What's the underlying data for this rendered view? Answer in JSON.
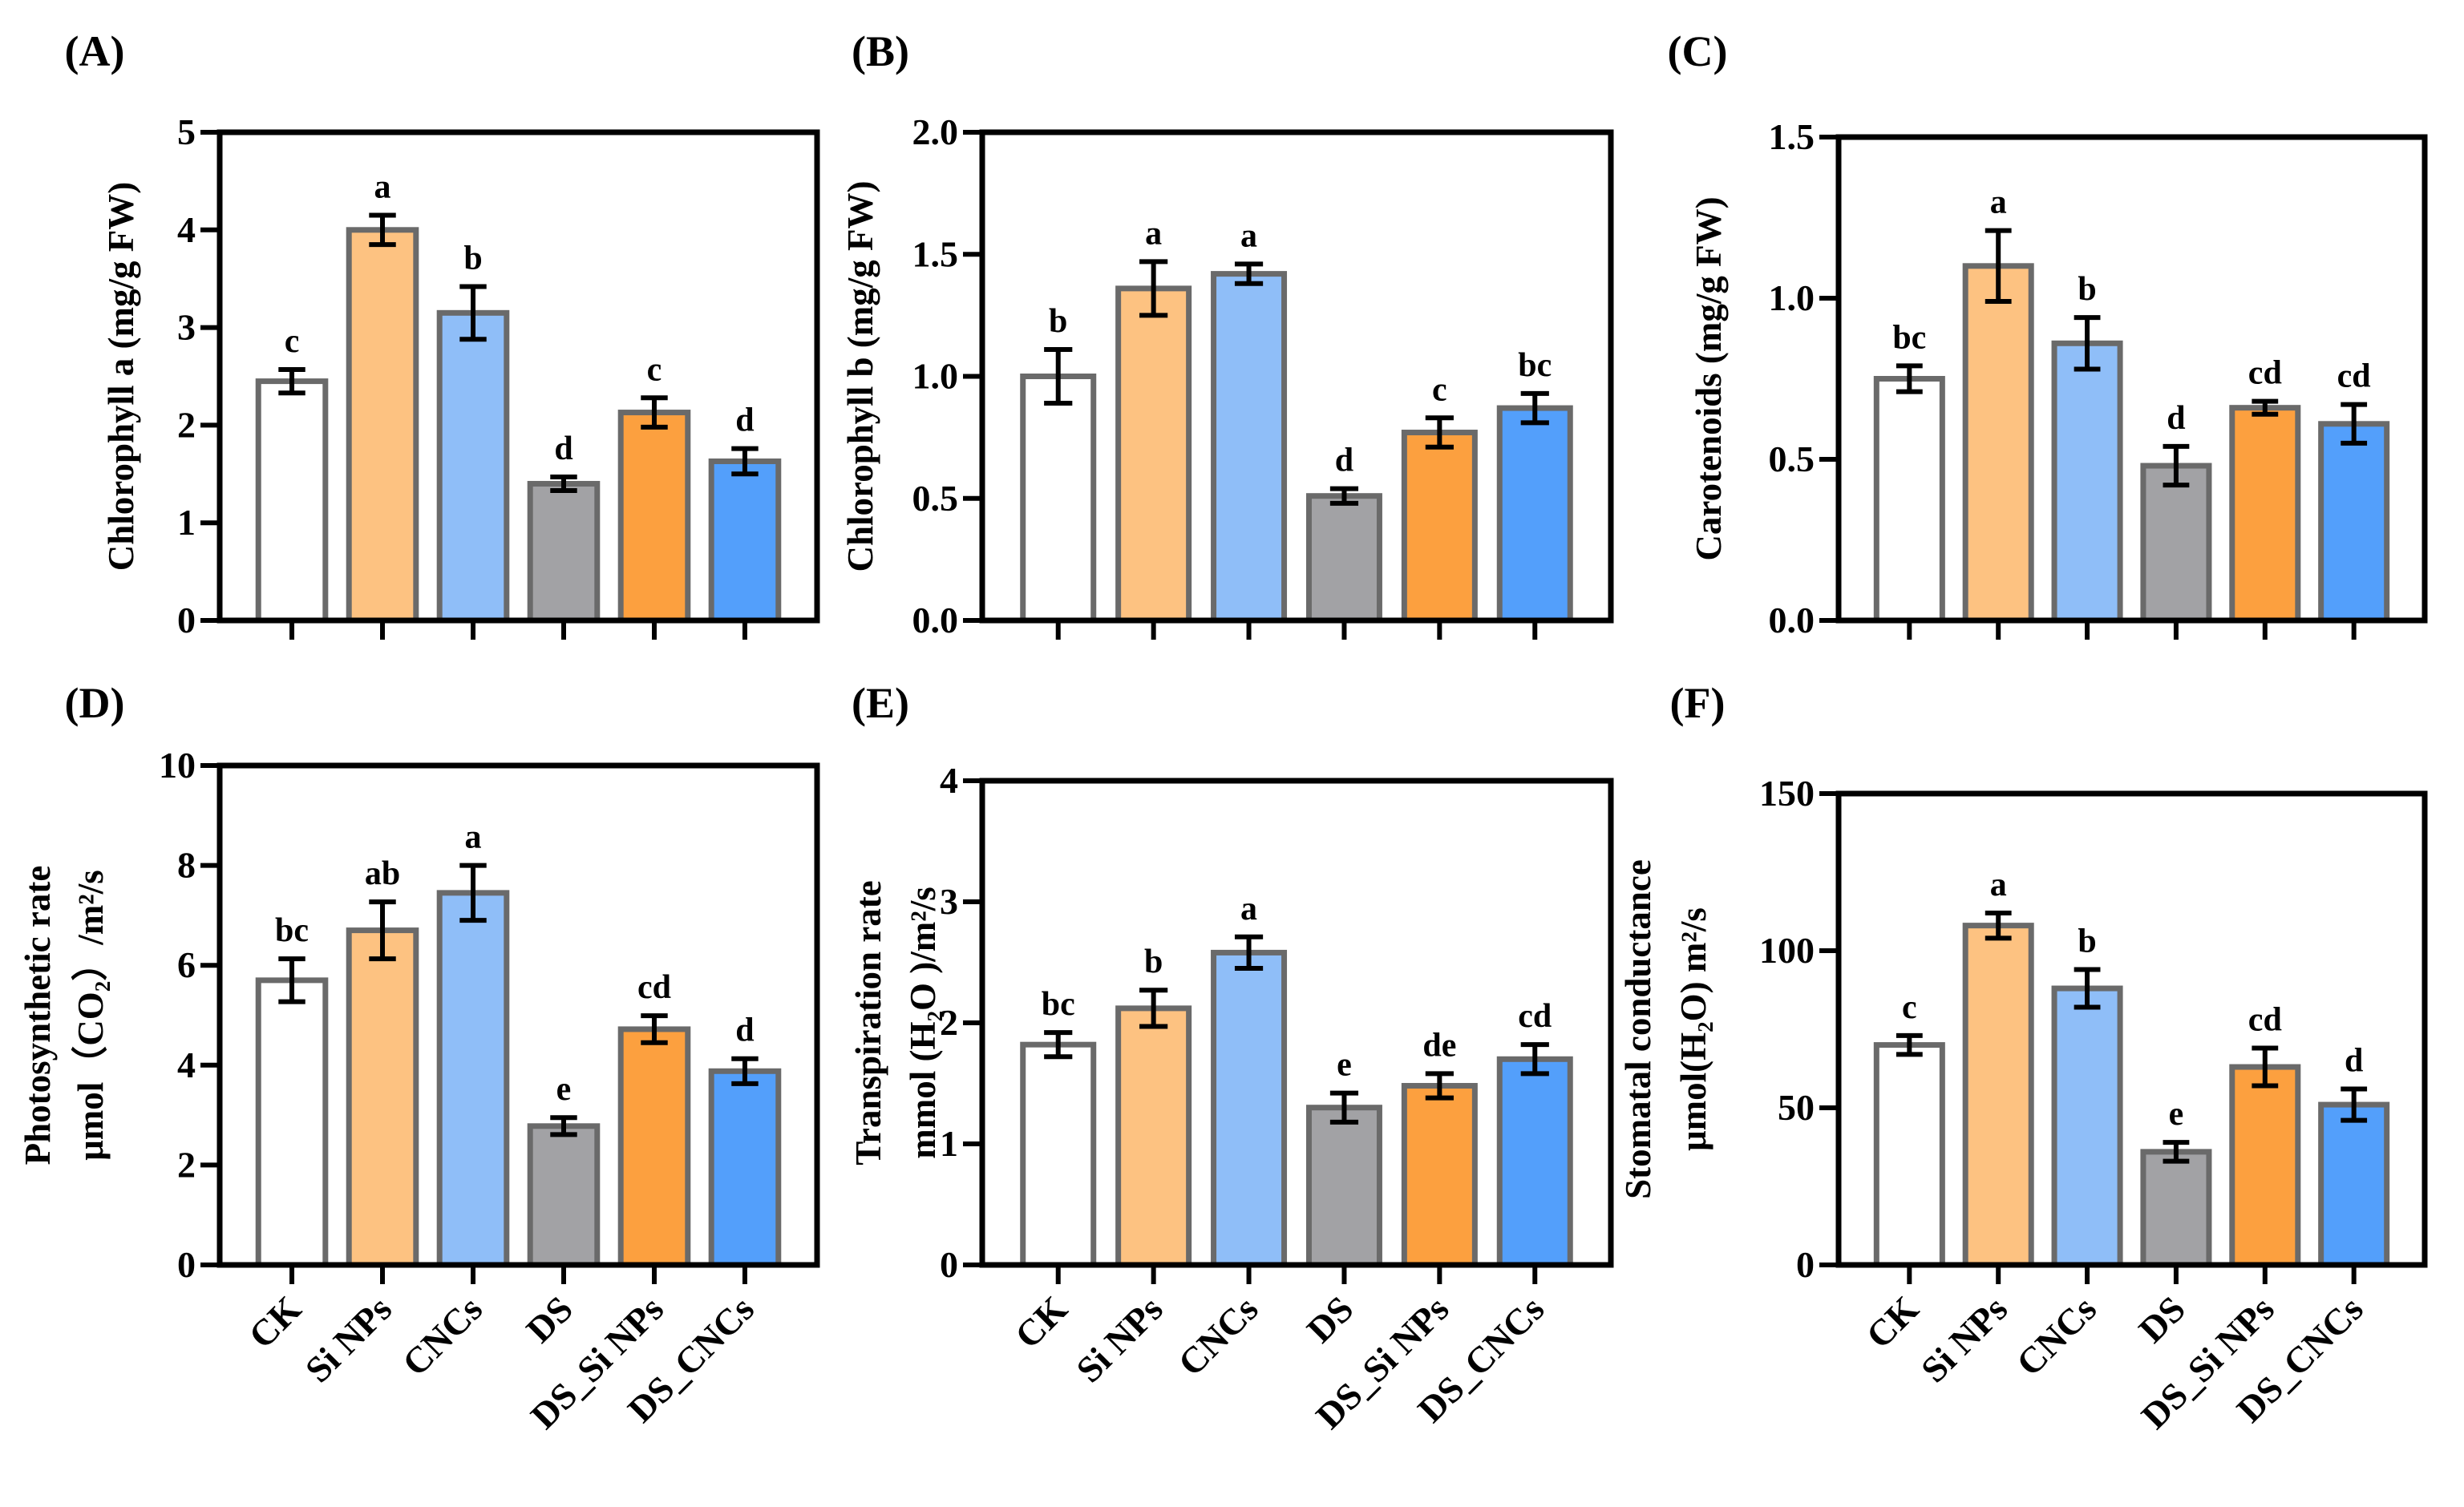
{
  "chart_data": [
    {
      "panel": "(A)",
      "type": "bar",
      "ylabel": [
        "Chlorophyll a (mg/g FW)"
      ],
      "ylim": [
        0,
        5
      ],
      "yticks": [
        "0",
        "1",
        "2",
        "3",
        "4",
        "5"
      ],
      "categories": [
        "CK",
        "Si NPs",
        "CNCs",
        "DS",
        "DS_Si NPs",
        "DS_CNCs"
      ],
      "values": [
        2.45,
        4.0,
        3.15,
        1.4,
        2.13,
        1.63
      ],
      "errors": [
        0.12,
        0.15,
        0.27,
        0.07,
        0.15,
        0.13
      ],
      "letters": [
        "c",
        "a",
        "b",
        "d",
        "c",
        "d"
      ],
      "show_xlabels": false
    },
    {
      "panel": "(B)",
      "type": "bar",
      "ylabel": [
        "Chlorophyll b (mg/g FW)"
      ],
      "ylim": [
        0,
        2
      ],
      "yticks": [
        "0.0",
        "0.5",
        "1.0",
        "1.5",
        "2.0"
      ],
      "categories": [
        "CK",
        "Si NPs",
        "CNCs",
        "DS",
        "DS_Si NPs",
        "DS_CNCs"
      ],
      "values": [
        1.0,
        1.36,
        1.42,
        0.51,
        0.77,
        0.87
      ],
      "errors": [
        0.11,
        0.11,
        0.04,
        0.03,
        0.06,
        0.06
      ],
      "letters": [
        "b",
        "a",
        "a",
        "d",
        "c",
        "bc"
      ],
      "show_xlabels": false
    },
    {
      "panel": "(C)",
      "type": "bar",
      "ylabel": [
        "Carotenoids (mg/g FW)"
      ],
      "ylim": [
        0,
        1.5
      ],
      "yticks": [
        "0.0",
        "0.5",
        "1.0",
        "1.5"
      ],
      "categories": [
        "CK",
        "Si NPs",
        "CNCs",
        "DS",
        "DS_Si NPs",
        "DS_CNCs"
      ],
      "values": [
        0.75,
        1.1,
        0.86,
        0.48,
        0.66,
        0.61
      ],
      "errors": [
        0.04,
        0.11,
        0.08,
        0.06,
        0.02,
        0.06
      ],
      "letters": [
        "bc",
        "a",
        "b",
        "d",
        "cd",
        "cd"
      ],
      "show_xlabels": false
    },
    {
      "panel": "(D)",
      "type": "bar",
      "ylabel": [
        "Photosynthetic rate",
        "μmol（CO₂）/m²/s"
      ],
      "ylim": [
        0,
        10
      ],
      "yticks": [
        "0",
        "2",
        "4",
        "6",
        "8",
        "10"
      ],
      "categories": [
        "CK",
        "Si NPs",
        "CNCs",
        "DS",
        "DS_Si NPs",
        "DS_CNCs"
      ],
      "values": [
        5.7,
        6.7,
        7.45,
        2.78,
        4.72,
        3.88
      ],
      "errors": [
        0.43,
        0.57,
        0.55,
        0.17,
        0.27,
        0.25
      ],
      "letters": [
        "bc",
        "ab",
        "a",
        "e",
        "cd",
        "d"
      ],
      "show_xlabels": true
    },
    {
      "panel": "(E)",
      "type": "bar",
      "ylabel": [
        "Transpiration rate",
        "mmol (H₂O )/m²/s"
      ],
      "ylim": [
        0,
        4
      ],
      "yticks": [
        "0",
        "1",
        "2",
        "3",
        "4"
      ],
      "categories": [
        "CK",
        "Si NPs",
        "CNCs",
        "DS",
        "DS_Si NPs",
        "DS_CNCs"
      ],
      "values": [
        1.82,
        2.12,
        2.58,
        1.3,
        1.48,
        1.7
      ],
      "errors": [
        0.1,
        0.15,
        0.13,
        0.12,
        0.1,
        0.12
      ],
      "letters": [
        "bc",
        "b",
        "a",
        "e",
        "de",
        "cd"
      ],
      "show_xlabels": true
    },
    {
      "panel": "(F)",
      "type": "bar",
      "ylabel": [
        "Stomatal conductance",
        "μmol(H₂O) m²/s"
      ],
      "ylim": [
        0,
        150
      ],
      "yticks": [
        "0",
        "50",
        "100",
        "150"
      ],
      "categories": [
        "CK",
        "Si NPs",
        "CNCs",
        "DS",
        "DS_Si NPs",
        "DS_CNCs"
      ],
      "values": [
        70,
        108,
        88,
        36,
        63,
        51
      ],
      "errors": [
        3,
        4,
        6,
        3,
        6,
        5
      ],
      "letters": [
        "c",
        "a",
        "b",
        "e",
        "cd",
        "d"
      ],
      "show_xlabels": true
    }
  ],
  "colors": {
    "bars": [
      "#ffffff",
      "#fdc281",
      "#8fbef8",
      "#a2a2a5",
      "#fca03f",
      "#539ffb"
    ],
    "edge": "#6a6a6a",
    "axis": "#000000"
  }
}
